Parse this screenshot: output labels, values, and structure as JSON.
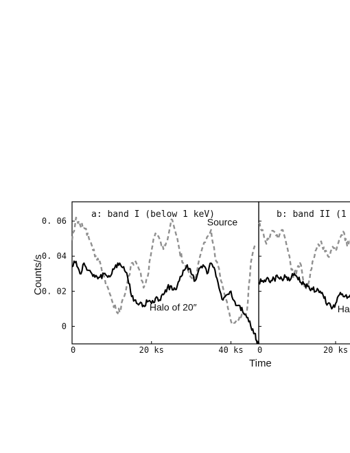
{
  "figure": {
    "ylabel": "Counts/s",
    "xlabel": "Time"
  },
  "chart_data": [
    {
      "type": "line",
      "title": "a: band I (below 1 keV)",
      "xlabel": "Time",
      "ylabel": "Counts/s",
      "xlim": [
        0,
        47
      ],
      "ylim": [
        -0.01,
        0.071
      ],
      "x_ticks": [
        0,
        20,
        40
      ],
      "x_tick_labels": [
        "0",
        "20 ks",
        "40 ks"
      ],
      "y_ticks": [
        0.06,
        0.04,
        0.02,
        0
      ],
      "y_tick_labels": [
        "0. 06",
        "0. 04",
        "0. 02",
        "0"
      ],
      "grid": false,
      "annotations": [
        {
          "text": "Source",
          "x": 34,
          "y": 0.0575
        },
        {
          "text": "Halo of 20″",
          "x": 19.5,
          "y": 0.009
        }
      ],
      "series": [
        {
          "style": "dashed-gray",
          "x": [
            0,
            1,
            2,
            3,
            4,
            5,
            6,
            7,
            8,
            9,
            10,
            11,
            12,
            13,
            14,
            15,
            16,
            17,
            18,
            19,
            20,
            21,
            22,
            23,
            24,
            25,
            26,
            27,
            28,
            29,
            30,
            31,
            32,
            33,
            34,
            35,
            36,
            37,
            38,
            39,
            40,
            41,
            42,
            43,
            44,
            45,
            46
          ],
          "values": [
            0.049,
            0.062,
            0.058,
            0.056,
            0.053,
            0.046,
            0.04,
            0.037,
            0.029,
            0.022,
            0.015,
            0.01,
            0.008,
            0.016,
            0.026,
            0.036,
            0.037,
            0.032,
            0.022,
            0.028,
            0.043,
            0.053,
            0.05,
            0.044,
            0.049,
            0.061,
            0.054,
            0.044,
            0.036,
            0.033,
            0.028,
            0.026,
            0.038,
            0.046,
            0.051,
            0.055,
            0.04,
            0.033,
            0.022,
            0.014,
            0.003,
            0.002,
            0.004,
            0.006,
            0.008,
            0.036,
            0.046
          ]
        },
        {
          "style": "solid-black",
          "x": [
            0,
            1,
            2,
            3,
            4,
            5,
            6,
            7,
            8,
            9,
            10,
            11,
            12,
            13,
            14,
            15,
            16,
            17,
            18,
            19,
            20,
            21,
            22,
            23,
            24,
            25,
            26,
            27,
            28,
            29,
            30,
            31,
            32,
            33,
            34,
            35,
            36,
            37,
            38,
            39,
            40,
            41,
            42,
            43,
            44,
            45,
            46,
            46.6,
            47
          ],
          "values": [
            0.034,
            0.037,
            0.03,
            0.036,
            0.032,
            0.03,
            0.029,
            0.028,
            0.03,
            0.028,
            0.03,
            0.035,
            0.036,
            0.034,
            0.028,
            0.017,
            0.015,
            0.013,
            0.012,
            0.014,
            0.013,
            0.016,
            0.015,
            0.018,
            0.022,
            0.023,
            0.021,
            0.026,
            0.032,
            0.035,
            0.03,
            0.026,
            0.033,
            0.035,
            0.03,
            0.036,
            0.032,
            0.022,
            0.015,
            0.018,
            0.02,
            0.014,
            0.012,
            0.008,
            0.005,
            0.0,
            -0.004,
            -0.01,
            -0.01
          ]
        }
      ]
    },
    {
      "type": "line",
      "title": "b: band II (1",
      "xlabel": "Time",
      "xlim": [
        0,
        25
      ],
      "ylim": [
        -0.01,
        0.071
      ],
      "x_ticks": [
        0,
        20
      ],
      "x_tick_labels": [
        "0",
        "20 ks"
      ],
      "y_ticks": [
        0.06,
        0.04,
        0.02,
        0
      ],
      "grid": false,
      "annotations": [
        {
          "text": "Ha",
          "x": 20.5,
          "y": 0.008
        }
      ],
      "series": [
        {
          "style": "dashed-gray",
          "x": [
            0,
            1,
            2,
            3,
            4,
            5,
            6,
            7,
            8,
            9,
            10,
            11,
            12,
            13,
            14,
            15,
            16,
            17,
            18,
            19,
            20,
            21,
            22,
            23,
            24,
            25
          ],
          "values": [
            0.059,
            0.055,
            0.047,
            0.052,
            0.054,
            0.05,
            0.055,
            0.049,
            0.04,
            0.028,
            0.033,
            0.035,
            0.022,
            0.025,
            0.037,
            0.044,
            0.048,
            0.045,
            0.04,
            0.044,
            0.043,
            0.05,
            0.054,
            0.046,
            0.05,
            0.051
          ]
        },
        {
          "style": "solid-black",
          "x": [
            0,
            1,
            2,
            3,
            4,
            5,
            6,
            7,
            8,
            9,
            10,
            11,
            12,
            13,
            14,
            15,
            16,
            17,
            18,
            19,
            20,
            21,
            22,
            23,
            24,
            25
          ],
          "values": [
            0.025,
            0.026,
            0.027,
            0.025,
            0.027,
            0.028,
            0.027,
            0.028,
            0.026,
            0.029,
            0.028,
            0.025,
            0.024,
            0.023,
            0.021,
            0.02,
            0.02,
            0.016,
            0.013,
            0.01,
            0.013,
            0.018,
            0.017,
            0.016,
            0.018,
            0.017
          ]
        }
      ]
    }
  ]
}
